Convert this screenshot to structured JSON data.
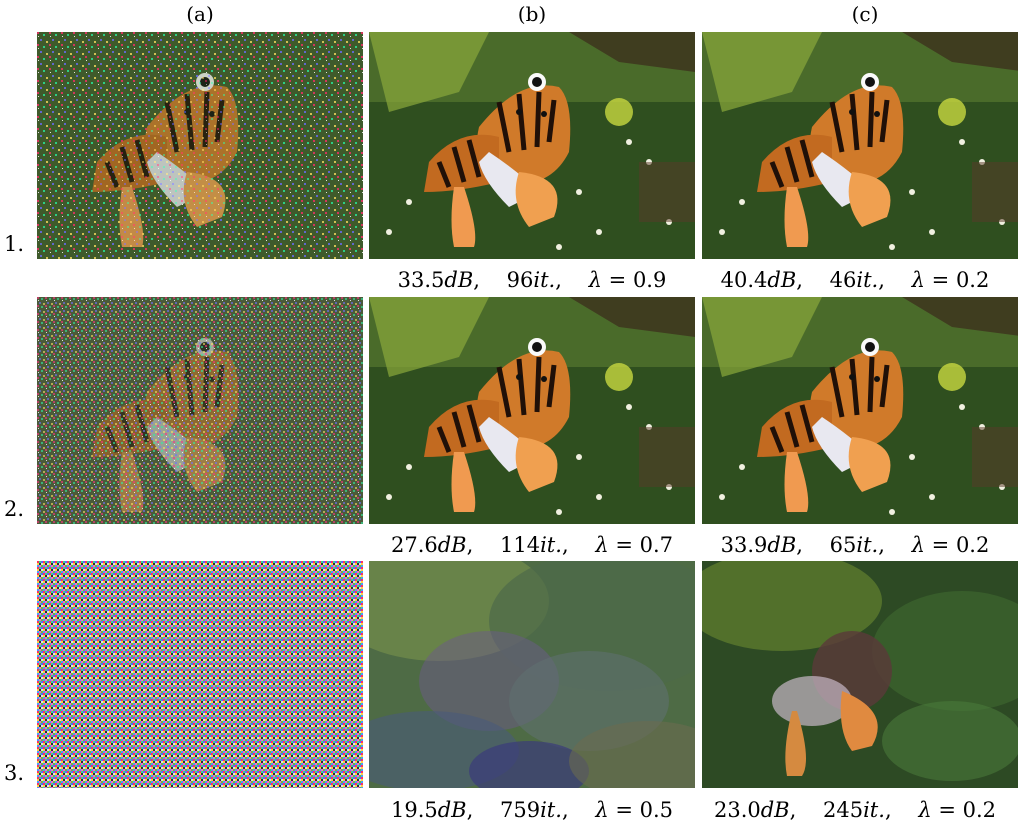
{
  "columns": [
    "(a)",
    "(b)",
    "(c)"
  ],
  "rows": [
    {
      "label": "1.",
      "b": {
        "psnr": "33.5",
        "iters": "96",
        "lambda": "0.9"
      },
      "c": {
        "psnr": "40.4",
        "iters": "46",
        "lambda": "0.2"
      }
    },
    {
      "label": "2.",
      "b": {
        "psnr": "27.6",
        "iters": "114",
        "lambda": "0.7"
      },
      "c": {
        "psnr": "33.9",
        "iters": "65",
        "lambda": "0.2"
      }
    },
    {
      "label": "3.",
      "b": {
        "psnr": "19.5",
        "iters": "759",
        "lambda": "0.5"
      },
      "c": {
        "psnr": "23.0",
        "iters": "245",
        "lambda": "0.2"
      }
    }
  ],
  "units": {
    "db": "dB",
    "it": "it.",
    "lambda_symbol": "λ",
    "equals": "="
  }
}
